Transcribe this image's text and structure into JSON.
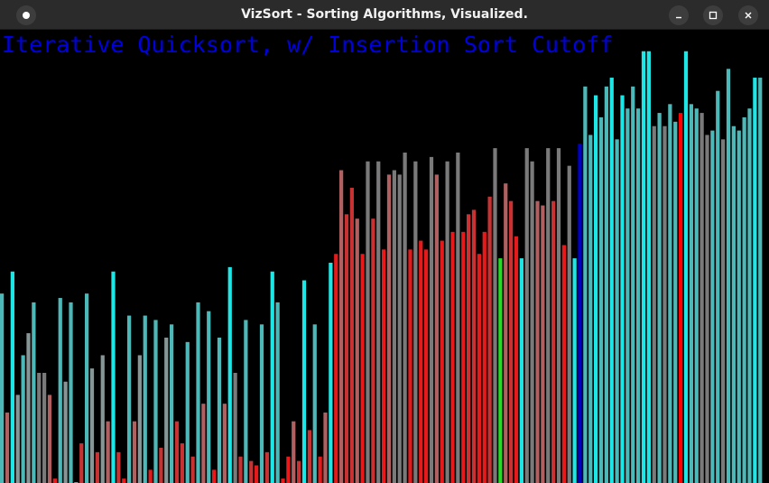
{
  "window": {
    "title": "VizSort - Sorting Algorithms, Visualized.",
    "controls": {
      "menu_icon": "dot-menu-icon",
      "minimize_icon": "minimize-icon",
      "maximize_icon": "maximize-icon",
      "close_icon": "close-icon"
    }
  },
  "visualization": {
    "algorithm_title": "Iterative Quicksort, w/ Insertion Sort Cutoff",
    "title_color": "#0000e0",
    "background": "#000000",
    "max_value": 100,
    "colors": {
      "cyan": "#1de6e6",
      "teal": "#4db8b8",
      "gray": "#7a7a7a",
      "slate": "#869595",
      "salmon": "#b06060",
      "crimson": "#c83232",
      "red": "#e61a1a",
      "bright_red": "#ff0000",
      "green": "#22dd22",
      "blue": "#0000cc"
    },
    "bars": [
      {
        "value": 43,
        "color": "teal"
      },
      {
        "value": 16,
        "color": "salmon"
      },
      {
        "value": 48,
        "color": "cyan"
      },
      {
        "value": 20,
        "color": "slate"
      },
      {
        "value": 29,
        "color": "teal"
      },
      {
        "value": 34,
        "color": "slate"
      },
      {
        "value": 41,
        "color": "teal"
      },
      {
        "value": 25,
        "color": "gray"
      },
      {
        "value": 25,
        "color": "gray"
      },
      {
        "value": 20,
        "color": "salmon"
      },
      {
        "value": 1,
        "color": "red"
      },
      {
        "value": 42,
        "color": "teal"
      },
      {
        "value": 23,
        "color": "slate"
      },
      {
        "value": 41,
        "color": "teal"
      },
      {
        "value": 0,
        "color": "slate"
      },
      {
        "value": 9,
        "color": "crimson"
      },
      {
        "value": 43,
        "color": "teal"
      },
      {
        "value": 26,
        "color": "slate"
      },
      {
        "value": 7,
        "color": "crimson"
      },
      {
        "value": 29,
        "color": "slate"
      },
      {
        "value": 14,
        "color": "salmon"
      },
      {
        "value": 48,
        "color": "cyan"
      },
      {
        "value": 7,
        "color": "crimson"
      },
      {
        "value": 1,
        "color": "red"
      },
      {
        "value": 38,
        "color": "teal"
      },
      {
        "value": 14,
        "color": "salmon"
      },
      {
        "value": 29,
        "color": "slate"
      },
      {
        "value": 38,
        "color": "teal"
      },
      {
        "value": 3,
        "color": "red"
      },
      {
        "value": 37,
        "color": "teal"
      },
      {
        "value": 8,
        "color": "crimson"
      },
      {
        "value": 33,
        "color": "slate"
      },
      {
        "value": 36,
        "color": "teal"
      },
      {
        "value": 14,
        "color": "crimson"
      },
      {
        "value": 9,
        "color": "crimson"
      },
      {
        "value": 32,
        "color": "teal"
      },
      {
        "value": 6,
        "color": "crimson"
      },
      {
        "value": 41,
        "color": "teal"
      },
      {
        "value": 18,
        "color": "salmon"
      },
      {
        "value": 39,
        "color": "teal"
      },
      {
        "value": 3,
        "color": "red"
      },
      {
        "value": 33,
        "color": "teal"
      },
      {
        "value": 18,
        "color": "salmon"
      },
      {
        "value": 49,
        "color": "cyan"
      },
      {
        "value": 25,
        "color": "gray"
      },
      {
        "value": 6,
        "color": "crimson"
      },
      {
        "value": 37,
        "color": "teal"
      },
      {
        "value": 5,
        "color": "crimson"
      },
      {
        "value": 4,
        "color": "red"
      },
      {
        "value": 36,
        "color": "teal"
      },
      {
        "value": 7,
        "color": "crimson"
      },
      {
        "value": 48,
        "color": "cyan"
      },
      {
        "value": 41,
        "color": "teal"
      },
      {
        "value": 1,
        "color": "red"
      },
      {
        "value": 6,
        "color": "red"
      },
      {
        "value": 14,
        "color": "salmon"
      },
      {
        "value": 5,
        "color": "crimson"
      },
      {
        "value": 46,
        "color": "cyan"
      },
      {
        "value": 12,
        "color": "crimson"
      },
      {
        "value": 36,
        "color": "teal"
      },
      {
        "value": 6,
        "color": "red"
      },
      {
        "value": 16,
        "color": "salmon"
      },
      {
        "value": 50,
        "color": "cyan"
      },
      {
        "value": 52,
        "color": "red"
      },
      {
        "value": 71,
        "color": "salmon"
      },
      {
        "value": 61,
        "color": "crimson"
      },
      {
        "value": 67,
        "color": "crimson"
      },
      {
        "value": 60,
        "color": "salmon"
      },
      {
        "value": 52,
        "color": "red"
      },
      {
        "value": 73,
        "color": "gray"
      },
      {
        "value": 60,
        "color": "crimson"
      },
      {
        "value": 73,
        "color": "gray"
      },
      {
        "value": 53,
        "color": "red"
      },
      {
        "value": 70,
        "color": "salmon"
      },
      {
        "value": 71,
        "color": "gray"
      },
      {
        "value": 70,
        "color": "gray"
      },
      {
        "value": 75,
        "color": "gray"
      },
      {
        "value": 53,
        "color": "red"
      },
      {
        "value": 73,
        "color": "gray"
      },
      {
        "value": 55,
        "color": "red"
      },
      {
        "value": 53,
        "color": "red"
      },
      {
        "value": 74,
        "color": "gray"
      },
      {
        "value": 70,
        "color": "salmon"
      },
      {
        "value": 55,
        "color": "red"
      },
      {
        "value": 73,
        "color": "gray"
      },
      {
        "value": 57,
        "color": "red"
      },
      {
        "value": 75,
        "color": "gray"
      },
      {
        "value": 57,
        "color": "red"
      },
      {
        "value": 61,
        "color": "crimson"
      },
      {
        "value": 62,
        "color": "crimson"
      },
      {
        "value": 52,
        "color": "red"
      },
      {
        "value": 57,
        "color": "red"
      },
      {
        "value": 65,
        "color": "crimson"
      },
      {
        "value": 76,
        "color": "gray"
      },
      {
        "value": 51,
        "color": "green"
      },
      {
        "value": 68,
        "color": "salmon"
      },
      {
        "value": 64,
        "color": "crimson"
      },
      {
        "value": 56,
        "color": "red"
      },
      {
        "value": 51,
        "color": "cyan"
      },
      {
        "value": 76,
        "color": "gray"
      },
      {
        "value": 73,
        "color": "gray"
      },
      {
        "value": 64,
        "color": "salmon"
      },
      {
        "value": 63,
        "color": "salmon"
      },
      {
        "value": 76,
        "color": "gray"
      },
      {
        "value": 64,
        "color": "crimson"
      },
      {
        "value": 76,
        "color": "gray"
      },
      {
        "value": 54,
        "color": "red"
      },
      {
        "value": 72,
        "color": "gray"
      },
      {
        "value": 51,
        "color": "cyan"
      },
      {
        "value": 77,
        "color": "blue"
      },
      {
        "value": 90,
        "color": "teal"
      },
      {
        "value": 79,
        "color": "teal"
      },
      {
        "value": 88,
        "color": "cyan"
      },
      {
        "value": 83,
        "color": "teal"
      },
      {
        "value": 90,
        "color": "teal"
      },
      {
        "value": 92,
        "color": "cyan"
      },
      {
        "value": 78,
        "color": "teal"
      },
      {
        "value": 88,
        "color": "cyan"
      },
      {
        "value": 85,
        "color": "teal"
      },
      {
        "value": 90,
        "color": "teal"
      },
      {
        "value": 85,
        "color": "teal"
      },
      {
        "value": 98,
        "color": "cyan"
      },
      {
        "value": 98,
        "color": "cyan"
      },
      {
        "value": 81,
        "color": "gray"
      },
      {
        "value": 84,
        "color": "teal"
      },
      {
        "value": 81,
        "color": "gray"
      },
      {
        "value": 86,
        "color": "teal"
      },
      {
        "value": 82,
        "color": "teal"
      },
      {
        "value": 84,
        "color": "bright_red"
      },
      {
        "value": 98,
        "color": "cyan"
      },
      {
        "value": 86,
        "color": "teal"
      },
      {
        "value": 85,
        "color": "teal"
      },
      {
        "value": 84,
        "color": "gray"
      },
      {
        "value": 79,
        "color": "gray"
      },
      {
        "value": 80,
        "color": "teal"
      },
      {
        "value": 89,
        "color": "teal"
      },
      {
        "value": 78,
        "color": "gray"
      },
      {
        "value": 94,
        "color": "teal"
      },
      {
        "value": 81,
        "color": "teal"
      },
      {
        "value": 80,
        "color": "teal"
      },
      {
        "value": 83,
        "color": "teal"
      },
      {
        "value": 85,
        "color": "teal"
      },
      {
        "value": 92,
        "color": "cyan"
      },
      {
        "value": 92,
        "color": "teal"
      }
    ]
  }
}
